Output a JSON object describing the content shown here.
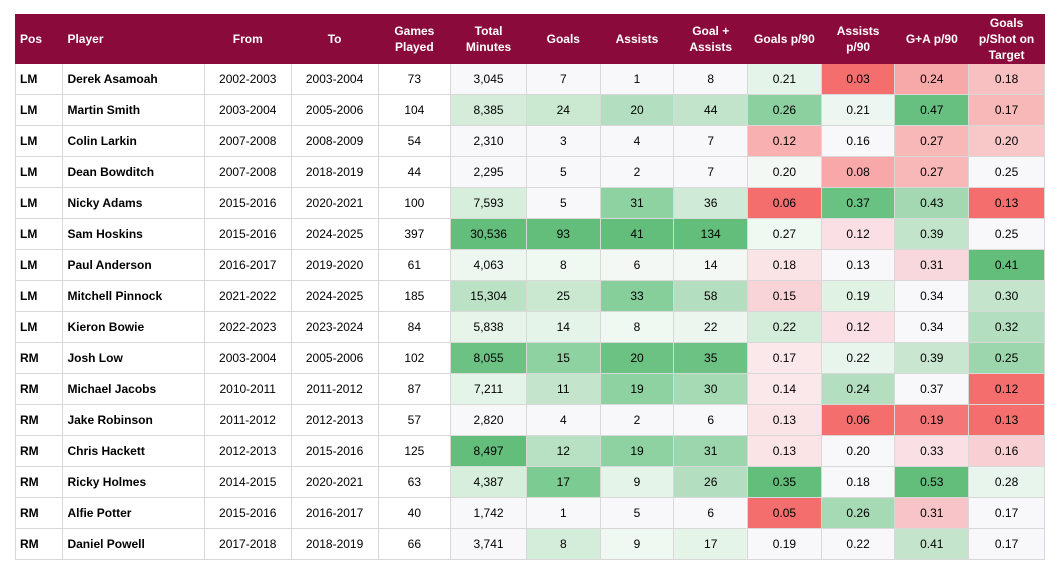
{
  "table": {
    "columns": [
      "Pos",
      "Player",
      "From",
      "To",
      "Games Played",
      "Total Minutes",
      "Goals",
      "Assists",
      "Goal + Assists",
      "Goals p/90",
      "Assists p/90",
      "G+A p/90",
      "Goals p/Shot on Target"
    ],
    "rows": [
      {
        "cells": [
          "LM",
          "Derek Asamoah",
          "2002-2003",
          "2003-2004",
          "73",
          "3,045",
          "7",
          "1",
          "8",
          "0.21",
          "0.03",
          "0.24",
          "0.18"
        ],
        "colors": [
          "#fff",
          "#fff",
          "#fff",
          "#fff",
          "#fff",
          "#f8f8fb",
          "#f8f8fb",
          "#f8f8fb",
          "#f8f8fb",
          "#e4f4e8",
          "#f46e6e",
          "#f7a8a8",
          "#f8c0c0"
        ]
      },
      {
        "cells": [
          "LM",
          "Martin Smith",
          "2003-2004",
          "2005-2006",
          "104",
          "8,385",
          "24",
          "20",
          "44",
          "0.26",
          "0.21",
          "0.47",
          "0.17"
        ],
        "colors": [
          "#fff",
          "#fff",
          "#fff",
          "#fff",
          "#fff",
          "#d4ecd9",
          "#cbe8d1",
          "#b4dec0",
          "#c2e4ca",
          "#8dd0a0",
          "#eef6f1",
          "#67c080",
          "#f8b8b8"
        ]
      },
      {
        "cells": [
          "LM",
          "Colin Larkin",
          "2007-2008",
          "2008-2009",
          "54",
          "2,310",
          "3",
          "4",
          "7",
          "0.12",
          "0.16",
          "0.27",
          "0.20"
        ],
        "colors": [
          "#fff",
          "#fff",
          "#fff",
          "#fff",
          "#fff",
          "#f8f8fb",
          "#f8f8fb",
          "#f8f8fb",
          "#f8f8fb",
          "#f8b0b0",
          "#f8f8fb",
          "#f8b8b8",
          "#f8c8c8"
        ]
      },
      {
        "cells": [
          "LM",
          "Dean Bowditch",
          "2007-2008",
          "2018-2019",
          "44",
          "2,295",
          "5",
          "2",
          "7",
          "0.20",
          "0.08",
          "0.27",
          "0.25"
        ],
        "colors": [
          "#fff",
          "#fff",
          "#fff",
          "#fff",
          "#fff",
          "#f8f8fb",
          "#f8f8fb",
          "#f8f8fb",
          "#f8f8fb",
          "#f4f8f5",
          "#f8a8a8",
          "#f8b8b8",
          "#f8f8fb"
        ]
      },
      {
        "cells": [
          "LM",
          "Nicky Adams",
          "2015-2016",
          "2020-2021",
          "100",
          "7,593",
          "5",
          "31",
          "36",
          "0.06",
          "0.37",
          "0.43",
          "0.13"
        ],
        "colors": [
          "#fff",
          "#fff",
          "#fff",
          "#fff",
          "#fff",
          "#d8eedd",
          "#f8f8fb",
          "#8ed2a2",
          "#cfead6",
          "#f46e6e",
          "#6ac282",
          "#a4d8b2",
          "#f46e6e"
        ]
      },
      {
        "cells": [
          "LM",
          "Sam Hoskins",
          "2015-2016",
          "2024-2025",
          "397",
          "30,536",
          "93",
          "41",
          "134",
          "0.27",
          "0.12",
          "0.39",
          "0.25"
        ],
        "colors": [
          "#fff",
          "#fff",
          "#fff",
          "#fff",
          "#fff",
          "#63be7b",
          "#63be7b",
          "#63be7b",
          "#63be7b",
          "#f0f8f2",
          "#fae0e4",
          "#c2e4ca",
          "#f8f8fb"
        ]
      },
      {
        "cells": [
          "LM",
          "Paul Anderson",
          "2016-2017",
          "2019-2020",
          "61",
          "4,063",
          "8",
          "6",
          "14",
          "0.18",
          "0.13",
          "0.31",
          "0.41"
        ],
        "colors": [
          "#fff",
          "#fff",
          "#fff",
          "#fff",
          "#fff",
          "#eef6f0",
          "#f0f8f2",
          "#f4f8f5",
          "#f4f8f5",
          "#fae4e6",
          "#f8f8fb",
          "#f8d8dc",
          "#63be7b"
        ]
      },
      {
        "cells": [
          "LM",
          "Mitchell Pinnock",
          "2021-2022",
          "2024-2025",
          "185",
          "15,304",
          "25",
          "33",
          "58",
          "0.15",
          "0.19",
          "0.34",
          "0.30"
        ],
        "colors": [
          "#fff",
          "#fff",
          "#fff",
          "#fff",
          "#fff",
          "#bce2c6",
          "#cae8d0",
          "#86ce9a",
          "#b4dec0",
          "#f8d4d8",
          "#e0f2e4",
          "#f8f8fb",
          "#c4e4cc"
        ]
      },
      {
        "cells": [
          "LM",
          "Kieron Bowie",
          "2022-2023",
          "2023-2024",
          "84",
          "5,838",
          "14",
          "8",
          "22",
          "0.22",
          "0.12",
          "0.34",
          "0.32"
        ],
        "colors": [
          "#fff",
          "#fff",
          "#fff",
          "#fff",
          "#fff",
          "#e6f4e9",
          "#e4f4e8",
          "#f0f8f2",
          "#ecf6ef",
          "#d4ecda",
          "#fae0e4",
          "#f8f8fb",
          "#b4dec0"
        ]
      },
      {
        "cells": [
          "RM",
          "Josh Low",
          "2003-2004",
          "2005-2006",
          "102",
          "8,055",
          "15",
          "20",
          "35",
          "0.17",
          "0.22",
          "0.39",
          "0.25"
        ],
        "colors": [
          "#fff",
          "#fff",
          "#fff",
          "#fff",
          "#fff",
          "#6cc283",
          "#8ed2a2",
          "#6cc283",
          "#6cc283",
          "#fae8ea",
          "#e8f5ec",
          "#c8e6d0",
          "#9cd6ac"
        ]
      },
      {
        "cells": [
          "RM",
          "Michael Jacobs",
          "2010-2011",
          "2011-2012",
          "87",
          "7,211",
          "11",
          "19",
          "30",
          "0.14",
          "0.24",
          "0.37",
          "0.12"
        ],
        "colors": [
          "#fff",
          "#fff",
          "#fff",
          "#fff",
          "#fff",
          "#e4f4e8",
          "#c4e4cc",
          "#8ed2a2",
          "#a6daB4",
          "#fae8ea",
          "#b4dec0",
          "#f8f8fb",
          "#f46e6e"
        ]
      },
      {
        "cells": [
          "RM",
          "Jake Robinson",
          "2011-2012",
          "2012-2013",
          "57",
          "2,820",
          "4",
          "2",
          "6",
          "0.13",
          "0.06",
          "0.19",
          "0.13"
        ],
        "colors": [
          "#fff",
          "#fff",
          "#fff",
          "#fff",
          "#fff",
          "#f8f8fb",
          "#f8f8fb",
          "#f8f8fb",
          "#f8f8fb",
          "#fae4e6",
          "#f46e6e",
          "#f47676",
          "#f46e6e"
        ]
      },
      {
        "cells": [
          "RM",
          "Chris Hackett",
          "2012-2013",
          "2015-2016",
          "125",
          "8,497",
          "12",
          "19",
          "31",
          "0.13",
          "0.20",
          "0.33",
          "0.16"
        ],
        "colors": [
          "#fff",
          "#fff",
          "#fff",
          "#fff",
          "#fff",
          "#63be7b",
          "#b8e0c2",
          "#8ed2a2",
          "#9cd6ac",
          "#fae4e6",
          "#f8f8fb",
          "#fae0e4",
          "#f8d0d4"
        ]
      },
      {
        "cells": [
          "RM",
          "Ricky Holmes",
          "2014-2015",
          "2020-2021",
          "63",
          "4,387",
          "17",
          "9",
          "26",
          "0.35",
          "0.18",
          "0.53",
          "0.28"
        ],
        "colors": [
          "#fff",
          "#fff",
          "#fff",
          "#fff",
          "#fff",
          "#d8eedd",
          "#7ccb92",
          "#e4f4e8",
          "#b4dec0",
          "#63be7b",
          "#f8f8fb",
          "#63be7b",
          "#e8f5ec"
        ]
      },
      {
        "cells": [
          "RM",
          "Alfie Potter",
          "2015-2016",
          "2016-2017",
          "40",
          "1,742",
          "1",
          "5",
          "6",
          "0.05",
          "0.26",
          "0.31",
          "0.17"
        ],
        "colors": [
          "#fff",
          "#fff",
          "#fff",
          "#fff",
          "#fff",
          "#f8f8fb",
          "#f8f8fb",
          "#f8f8fb",
          "#f8f8fb",
          "#f46e6e",
          "#a6daB4",
          "#f8c4c8",
          "#f8f8fb"
        ]
      },
      {
        "cells": [
          "RM",
          "Daniel Powell",
          "2017-2018",
          "2018-2019",
          "66",
          "3,741",
          "8",
          "9",
          "17",
          "0.19",
          "0.22",
          "0.41",
          "0.17"
        ],
        "colors": [
          "#fff",
          "#fff",
          "#fff",
          "#fff",
          "#fff",
          "#f8f8fb",
          "#d4ecda",
          "#f0f8f2",
          "#e4f4e8",
          "#f8f8fb",
          "#f8f8fb",
          "#c4e4cc",
          "#f8f8fb"
        ]
      }
    ]
  },
  "colors": {
    "header_bg": "#8b0a3c",
    "header_text": "#ffffff"
  }
}
